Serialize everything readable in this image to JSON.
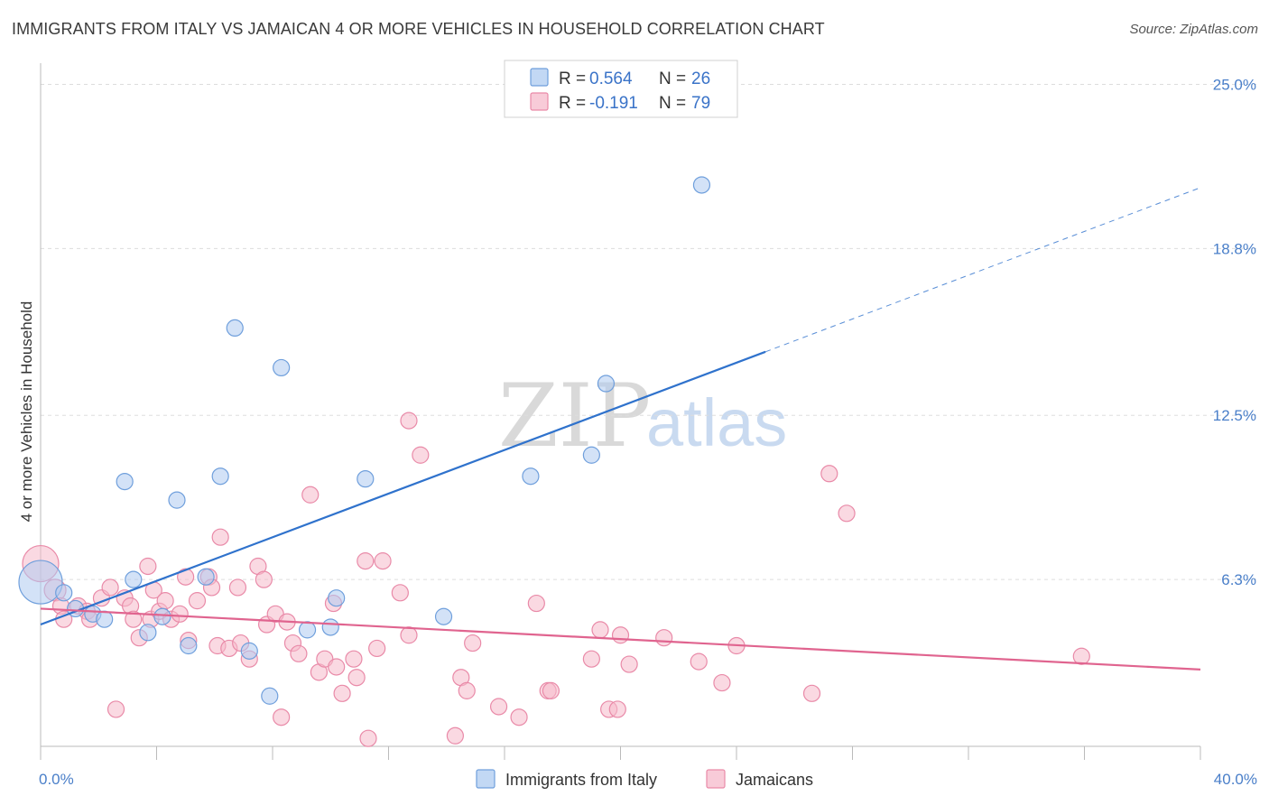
{
  "title": "IMMIGRANTS FROM ITALY VS JAMAICAN 4 OR MORE VEHICLES IN HOUSEHOLD CORRELATION CHART",
  "source": "Source: ZipAtlas.com",
  "watermark": {
    "zip": "ZIP",
    "atlas": "atlas"
  },
  "colors": {
    "italy_fill": "#aecbf0",
    "italy_stroke": "#6f9fdc",
    "italy_line": "#2f72cc",
    "jamaica_fill": "#f6b9cb",
    "jamaica_stroke": "#e98aa8",
    "jamaica_line": "#e0648f",
    "tick_text": "#4a7fc9",
    "grid": "#dddddd"
  },
  "legend": {
    "rows": [
      {
        "r_label": "R = ",
        "r_value": "0.564",
        "n_label": "N = ",
        "n_value": "26"
      },
      {
        "r_label": "R = ",
        "r_value": "-0.191",
        "n_label": "N = ",
        "n_value": "79"
      }
    ]
  },
  "bottom_legend": [
    "Immigrants from Italy",
    "Jamaicans"
  ],
  "chart_data": {
    "type": "scatter",
    "title": "IMMIGRANTS FROM ITALY VS JAMAICAN 4 OR MORE VEHICLES IN HOUSEHOLD CORRELATION CHART",
    "xlabel": "",
    "ylabel": "4 or more Vehicles in Household",
    "xlim": [
      0,
      40
    ],
    "ylim": [
      0,
      25.8
    ],
    "x_tick_labels": [
      "0.0%",
      "40.0%"
    ],
    "y_ticks": [
      6.3,
      12.5,
      18.8,
      25.0
    ],
    "y_tick_labels": [
      "6.3%",
      "12.5%",
      "18.8%",
      "25.0%"
    ],
    "grid": "horizontal dashed",
    "legend_position": "top-center",
    "series": [
      {
        "name": "Immigrants from Italy",
        "r": 0.564,
        "n": 26,
        "trend": {
          "x0": 0,
          "y0": 4.6,
          "x1": 25.0,
          "y1": 14.9,
          "dashed_to_x": 40.0,
          "dashed_to_y": 21.1
        },
        "points": [
          [
            0.0,
            6.2,
            24
          ],
          [
            0.8,
            5.8,
            9
          ],
          [
            1.2,
            5.2,
            9
          ],
          [
            1.8,
            5.0,
            9
          ],
          [
            2.2,
            4.8,
            9
          ],
          [
            2.9,
            10.0,
            9
          ],
          [
            3.2,
            6.3,
            9
          ],
          [
            3.7,
            4.3,
            9
          ],
          [
            4.2,
            4.9,
            9
          ],
          [
            4.7,
            9.3,
            9
          ],
          [
            5.1,
            3.8,
            9
          ],
          [
            5.7,
            6.4,
            9
          ],
          [
            6.2,
            10.2,
            9
          ],
          [
            6.7,
            15.8,
            9
          ],
          [
            7.2,
            3.6,
            9
          ],
          [
            7.9,
            1.9,
            9
          ],
          [
            8.3,
            14.3,
            9
          ],
          [
            9.2,
            4.4,
            9
          ],
          [
            10.0,
            4.5,
            9
          ],
          [
            10.2,
            5.6,
            9
          ],
          [
            11.2,
            10.1,
            9
          ],
          [
            13.9,
            4.9,
            9
          ],
          [
            16.9,
            10.2,
            9
          ],
          [
            19.0,
            11.0,
            9
          ],
          [
            19.5,
            13.7,
            9
          ],
          [
            22.8,
            21.2,
            9
          ]
        ]
      },
      {
        "name": "Jamaicans",
        "r": -0.191,
        "n": 79,
        "trend": {
          "x0": 0,
          "y0": 5.2,
          "x1": 40.0,
          "y1": 2.9
        },
        "points": [
          [
            0.0,
            6.9,
            20
          ],
          [
            0.5,
            5.9,
            12
          ],
          [
            0.7,
            5.3,
            9
          ],
          [
            0.8,
            4.8,
            9
          ],
          [
            1.3,
            5.3,
            9
          ],
          [
            1.6,
            5.1,
            9
          ],
          [
            1.7,
            4.8,
            9
          ],
          [
            2.1,
            5.6,
            9
          ],
          [
            2.4,
            6.0,
            9
          ],
          [
            2.6,
            1.4,
            9
          ],
          [
            2.9,
            5.6,
            9
          ],
          [
            3.1,
            5.3,
            9
          ],
          [
            3.2,
            4.8,
            9
          ],
          [
            3.4,
            4.1,
            9
          ],
          [
            3.7,
            6.8,
            9
          ],
          [
            3.8,
            4.8,
            9
          ],
          [
            3.9,
            5.9,
            9
          ],
          [
            4.1,
            5.1,
            9
          ],
          [
            4.3,
            5.5,
            9
          ],
          [
            4.5,
            4.8,
            9
          ],
          [
            4.8,
            5.0,
            9
          ],
          [
            5.0,
            6.4,
            9
          ],
          [
            5.1,
            4.0,
            9
          ],
          [
            5.4,
            5.5,
            9
          ],
          [
            5.8,
            6.4,
            9
          ],
          [
            5.9,
            6.0,
            9
          ],
          [
            6.1,
            3.8,
            9
          ],
          [
            6.2,
            7.9,
            9
          ],
          [
            6.5,
            3.7,
            9
          ],
          [
            6.8,
            6.0,
            9
          ],
          [
            6.9,
            3.9,
            9
          ],
          [
            7.2,
            3.3,
            9
          ],
          [
            7.5,
            6.8,
            9
          ],
          [
            7.7,
            6.3,
            9
          ],
          [
            7.8,
            4.6,
            9
          ],
          [
            8.1,
            5.0,
            9
          ],
          [
            8.3,
            1.1,
            9
          ],
          [
            8.5,
            4.7,
            9
          ],
          [
            8.7,
            3.9,
            9
          ],
          [
            8.9,
            3.5,
            9
          ],
          [
            9.3,
            9.5,
            9
          ],
          [
            9.6,
            2.8,
            9
          ],
          [
            9.8,
            3.3,
            9
          ],
          [
            10.1,
            5.4,
            9
          ],
          [
            10.2,
            3.0,
            9
          ],
          [
            10.4,
            2.0,
            9
          ],
          [
            10.8,
            3.3,
            9
          ],
          [
            10.9,
            2.6,
            9
          ],
          [
            11.2,
            7.0,
            9
          ],
          [
            11.3,
            0.3,
            9
          ],
          [
            11.6,
            3.7,
            9
          ],
          [
            11.8,
            7.0,
            9
          ],
          [
            12.4,
            5.8,
            9
          ],
          [
            12.7,
            4.2,
            9
          ],
          [
            12.7,
            12.3,
            9
          ],
          [
            13.1,
            11.0,
            9
          ],
          [
            14.3,
            0.4,
            9
          ],
          [
            14.5,
            2.6,
            9
          ],
          [
            14.7,
            2.1,
            9
          ],
          [
            14.9,
            3.9,
            9
          ],
          [
            15.8,
            1.5,
            9
          ],
          [
            16.5,
            1.1,
            9
          ],
          [
            17.1,
            5.4,
            9
          ],
          [
            17.5,
            2.1,
            9
          ],
          [
            17.6,
            2.1,
            9
          ],
          [
            19.0,
            3.3,
            9
          ],
          [
            19.3,
            4.4,
            9
          ],
          [
            19.6,
            1.4,
            9
          ],
          [
            19.9,
            1.4,
            9
          ],
          [
            20.0,
            4.2,
            9
          ],
          [
            20.3,
            3.1,
            9
          ],
          [
            21.5,
            4.1,
            9
          ],
          [
            22.7,
            3.2,
            9
          ],
          [
            23.5,
            2.4,
            9
          ],
          [
            24.0,
            3.8,
            9
          ],
          [
            26.6,
            2.0,
            9
          ],
          [
            27.2,
            10.3,
            9
          ],
          [
            27.8,
            8.8,
            9
          ],
          [
            35.9,
            3.4,
            9
          ]
        ]
      }
    ]
  }
}
